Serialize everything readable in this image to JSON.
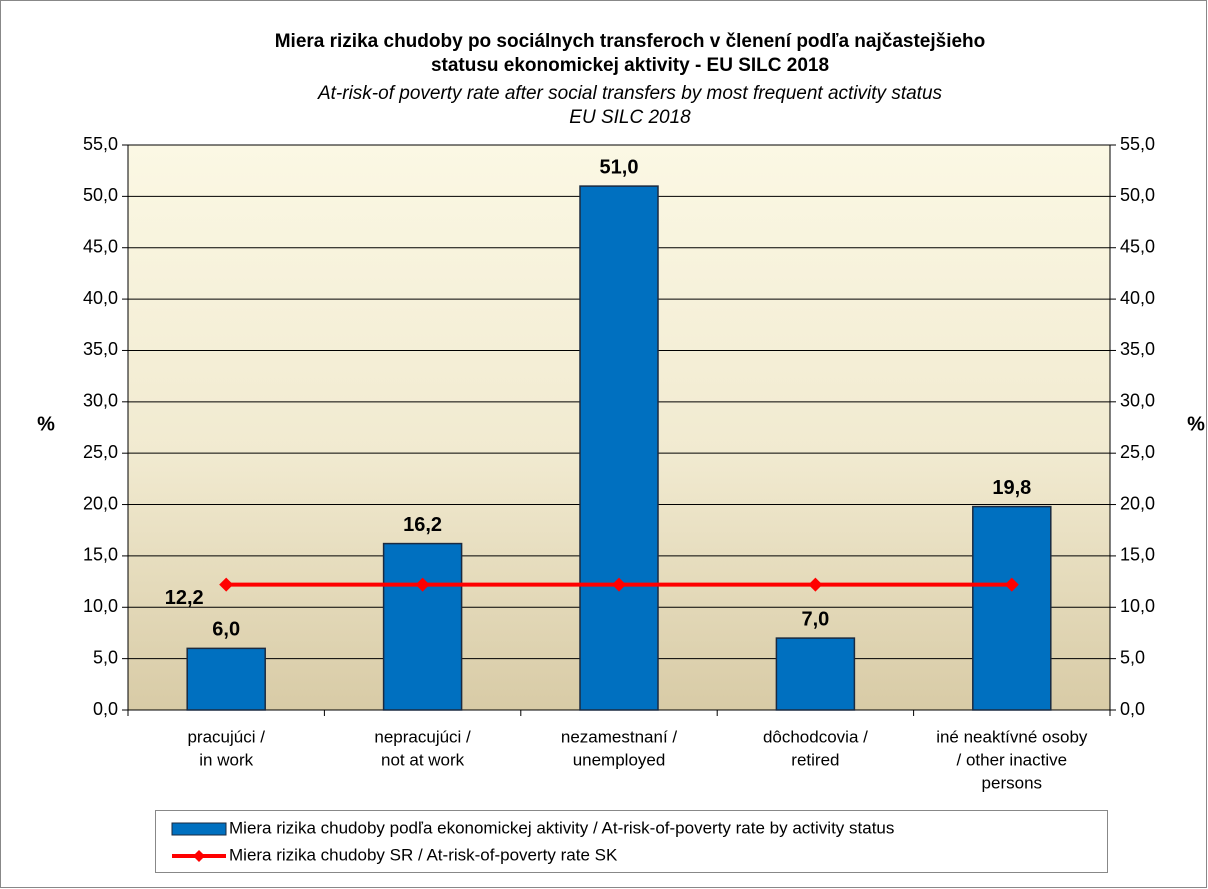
{
  "chart_data": {
    "type": "bar",
    "title": [
      "Miera rizika chudoby po sociálnych transferoch v členení podľa najčastejšieho",
      "statusu ekonomickej aktivity - EU SILC 2018"
    ],
    "subtitle": [
      "At-risk-of poverty rate after social transfers by most frequent activity status",
      "EU SILC 2018"
    ],
    "y_label": "%",
    "y2_label": "%",
    "categories": [
      [
        "pracujúci /",
        "in work"
      ],
      [
        "nepracujúci /",
        "not at work"
      ],
      [
        "nezamestnaní /",
        "unemployed"
      ],
      [
        "dôchodcovia /",
        "retired"
      ],
      [
        "iné neaktívné osoby",
        "/ other inactive",
        "persons"
      ]
    ],
    "series": [
      {
        "name": "Miera rizika chudoby podľa ekonomickej aktivity / At-risk-of-poverty rate by activity status",
        "type": "bar",
        "color": "#0070c0",
        "values": [
          6.0,
          16.2,
          51.0,
          7.0,
          19.8
        ],
        "value_labels": [
          "6,0",
          "16,2",
          "51,0",
          "7,0",
          "19,8"
        ]
      },
      {
        "name": "Miera rizika chudoby SR / At-risk-of-poverty rate SK",
        "type": "line",
        "color": "#ff0000",
        "values": [
          12.2,
          12.2,
          12.2,
          12.2,
          12.2
        ],
        "value_labels": [
          "12,2",
          null,
          null,
          null,
          null
        ]
      }
    ],
    "ylim": [
      0,
      55
    ],
    "yticks": [
      {
        "value": 0,
        "label": "0,0"
      },
      {
        "value": 5,
        "label": "5,0"
      },
      {
        "value": 10,
        "label": "10,0"
      },
      {
        "value": 15,
        "label": "15,0"
      },
      {
        "value": 20,
        "label": "20,0"
      },
      {
        "value": 25,
        "label": "25,0"
      },
      {
        "value": 30,
        "label": "30,0"
      },
      {
        "value": 35,
        "label": "35,0"
      },
      {
        "value": 40,
        "label": "40,0"
      },
      {
        "value": 45,
        "label": "45,0"
      },
      {
        "value": 50,
        "label": "50,0"
      },
      {
        "value": 55,
        "label": "55,0"
      }
    ],
    "y2lim": [
      0,
      55
    ],
    "y2ticks": [
      {
        "value": 0,
        "label": "0,0"
      },
      {
        "value": 5,
        "label": "5,0"
      },
      {
        "value": 10,
        "label": "10,0"
      },
      {
        "value": 15,
        "label": "15,0"
      },
      {
        "value": 20,
        "label": "20,0"
      },
      {
        "value": 25,
        "label": "25,0"
      },
      {
        "value": 30,
        "label": "30,0"
      },
      {
        "value": 35,
        "label": "35,0"
      },
      {
        "value": 40,
        "label": "40,0"
      },
      {
        "value": 45,
        "label": "45,0"
      },
      {
        "value": 50,
        "label": "50,0"
      },
      {
        "value": 55,
        "label": "55,0"
      }
    ],
    "grid": true,
    "legend": "bottom"
  }
}
